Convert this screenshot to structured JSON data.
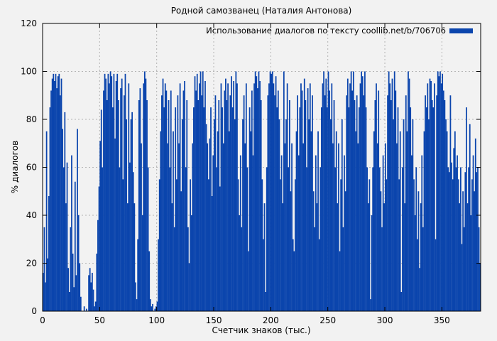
{
  "colors": {
    "bar": "#0b45ad",
    "background": "#f2f2f2",
    "grid": "#b3b3b3",
    "axis": "#000000",
    "text": "#000000"
  },
  "chart_data": {
    "type": "bar",
    "title": "Родной самозванец (Наталия Антонова)",
    "legend": "Использование диалогов по тексту coollib.net/b/706706",
    "legend_position": "top-right-inside",
    "xlabel": "Счетчик знаков (тыс.)",
    "ylabel": "% диалогов",
    "xlim": [
      0,
      384
    ],
    "ylim": [
      0,
      120
    ],
    "xticks": [
      0,
      50,
      100,
      150,
      200,
      250,
      300,
      350
    ],
    "yticks": [
      0,
      20,
      40,
      60,
      80,
      100,
      120
    ],
    "grid": true,
    "values": [
      16,
      35,
      12,
      75,
      22,
      48,
      85,
      92,
      97,
      99,
      96,
      99,
      93,
      98,
      99,
      90,
      97,
      76,
      60,
      83,
      45,
      62,
      18,
      8,
      35,
      65,
      24,
      10,
      54,
      15,
      76,
      40,
      20,
      6,
      0,
      0,
      2,
      0,
      1,
      0,
      15,
      18,
      12,
      16,
      9,
      2,
      4,
      24,
      38,
      52,
      71,
      84,
      60,
      92,
      99,
      97,
      88,
      99,
      95,
      100,
      98,
      85,
      99,
      72,
      96,
      99,
      88,
      60,
      93,
      97,
      55,
      90,
      99,
      80,
      45,
      95,
      62,
      80,
      83,
      58,
      45,
      12,
      5,
      30,
      88,
      93,
      70,
      40,
      95,
      100,
      97,
      88,
      60,
      25,
      5,
      2,
      3,
      0,
      1,
      2,
      4,
      30,
      55,
      75,
      90,
      97,
      85,
      95,
      92,
      70,
      88,
      60,
      92,
      45,
      75,
      35,
      85,
      55,
      90,
      70,
      95,
      50,
      80,
      92,
      96,
      60,
      88,
      35,
      20,
      55,
      40,
      70,
      85,
      98,
      92,
      99,
      88,
      95,
      100,
      90,
      100,
      85,
      96,
      78,
      70,
      55,
      72,
      85,
      48,
      65,
      80,
      90,
      60,
      75,
      88,
      52,
      95,
      85,
      70,
      92,
      97,
      88,
      95,
      75,
      90,
      98,
      85,
      96,
      80,
      100,
      95,
      55,
      40,
      65,
      35,
      80,
      90,
      70,
      95,
      60,
      25,
      85,
      75,
      92,
      65,
      95,
      100,
      98,
      93,
      100,
      96,
      88,
      55,
      30,
      45,
      8,
      60,
      90,
      95,
      100,
      99,
      100,
      95,
      90,
      98,
      85,
      92,
      80,
      55,
      65,
      45,
      100,
      70,
      80,
      95,
      60,
      88,
      50,
      70,
      30,
      25,
      55,
      75,
      90,
      65,
      85,
      95,
      92,
      70,
      97,
      88,
      60,
      93,
      80,
      95,
      75,
      90,
      50,
      35,
      65,
      45,
      75,
      30,
      60,
      85,
      95,
      100,
      90,
      97,
      85,
      100,
      92,
      80,
      95,
      70,
      88,
      60,
      75,
      45,
      70,
      25,
      55,
      80,
      35,
      65,
      50,
      90,
      97,
      85,
      95,
      100,
      92,
      100,
      88,
      75,
      90,
      70,
      85,
      95,
      100,
      98,
      90,
      100,
      85,
      60,
      45,
      55,
      5,
      40,
      60,
      75,
      88,
      95,
      70,
      92,
      60,
      50,
      35,
      65,
      45,
      70,
      55,
      90,
      100,
      95,
      88,
      97,
      80,
      100,
      92,
      70,
      85,
      55,
      75,
      8,
      60,
      80,
      45,
      90,
      75,
      100,
      97,
      85,
      65,
      80,
      55,
      40,
      60,
      30,
      50,
      18,
      45,
      65,
      35,
      75,
      90,
      85,
      95,
      80,
      97,
      96,
      88,
      85,
      95,
      30,
      90,
      100,
      98,
      100,
      95,
      99,
      92,
      88,
      80,
      75,
      60,
      58,
      90,
      62,
      55,
      68,
      75,
      60,
      65,
      55,
      45,
      60,
      28,
      50,
      35,
      58,
      85,
      45,
      60,
      78,
      40,
      55,
      65,
      50,
      72,
      58,
      60,
      35,
      20
    ]
  }
}
